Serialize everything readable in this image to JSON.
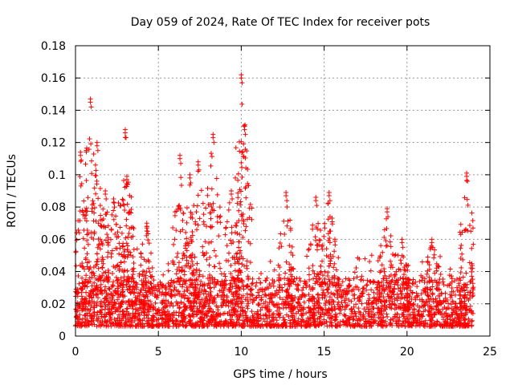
{
  "chart_data": {
    "type": "scatter",
    "title": "Day 059 of 2024, Rate Of TEC Index for receiver pots",
    "xlabel": "GPS time / hours",
    "ylabel": "ROTI / TECUs",
    "xlim": [
      0,
      25
    ],
    "ylim": [
      0,
      0.18
    ],
    "x_ticks": [
      0,
      5,
      10,
      15,
      20,
      25
    ],
    "y_ticks": [
      0,
      0.02,
      0.04,
      0.06,
      0.08,
      0.1,
      0.12,
      0.14,
      0.16,
      0.18
    ],
    "x_tick_labels": [
      "0",
      "5",
      "10",
      "15",
      "20",
      "25"
    ],
    "y_tick_labels": [
      "0",
      "0.02",
      "0.04",
      "0.06",
      "0.08",
      "0.1",
      "0.12",
      "0.14",
      "0.16",
      "0.18"
    ],
    "grid": true,
    "marker": "+",
    "marker_color": "#ff0000",
    "series": [
      {
        "name": "ROTI",
        "x_range": [
          0,
          24
        ],
        "baseline_min": 0.003,
        "baseline_max": 0.045,
        "notable_peaks": [
          {
            "x": 0.3,
            "y": 0.114
          },
          {
            "x": 0.9,
            "y": 0.147
          },
          {
            "x": 1.3,
            "y": 0.12
          },
          {
            "x": 1.8,
            "y": 0.09
          },
          {
            "x": 2.3,
            "y": 0.085
          },
          {
            "x": 3.0,
            "y": 0.128
          },
          {
            "x": 3.1,
            "y": 0.099
          },
          {
            "x": 4.3,
            "y": 0.07
          },
          {
            "x": 6.3,
            "y": 0.112
          },
          {
            "x": 6.9,
            "y": 0.1
          },
          {
            "x": 7.4,
            "y": 0.108
          },
          {
            "x": 8.3,
            "y": 0.125
          },
          {
            "x": 9.4,
            "y": 0.09
          },
          {
            "x": 10.0,
            "y": 0.162
          },
          {
            "x": 10.2,
            "y": 0.13
          },
          {
            "x": 12.7,
            "y": 0.089
          },
          {
            "x": 14.5,
            "y": 0.086
          },
          {
            "x": 15.3,
            "y": 0.089
          },
          {
            "x": 18.8,
            "y": 0.079
          },
          {
            "x": 19.7,
            "y": 0.06
          },
          {
            "x": 21.5,
            "y": 0.06
          },
          {
            "x": 23.6,
            "y": 0.101
          }
        ]
      }
    ]
  }
}
